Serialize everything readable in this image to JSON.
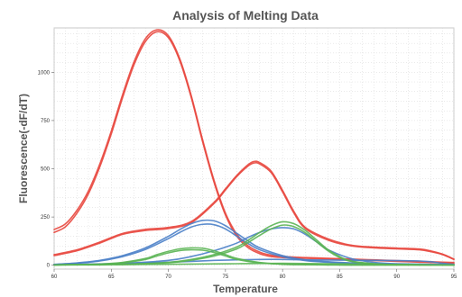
{
  "chart_data": {
    "type": "line",
    "title": "Analysis of Melting Data",
    "xlabel": "Temperature",
    "ylabel": "Fluorescence(-dF/dT)",
    "xlim": [
      60,
      95
    ],
    "ylim": [
      -20,
      1230
    ],
    "x_ticks": [
      "60",
      "65",
      "70",
      "75",
      "80",
      "85",
      "90",
      "95"
    ],
    "x_tick_values": [
      60,
      65,
      70,
      75,
      80,
      85,
      90,
      95
    ],
    "y_ticks": [
      "0",
      "250",
      "500",
      "750",
      "1000"
    ],
    "y_tick_values": [
      0,
      250,
      500,
      750,
      1000
    ],
    "grid": true,
    "series": [
      {
        "color": "#e8463d",
        "x": [
          60,
          61,
          62,
          63,
          64,
          65,
          66,
          67,
          68,
          69,
          70,
          71,
          72,
          73,
          74,
          75,
          76,
          77,
          78,
          79,
          80,
          81,
          82,
          83,
          84,
          85,
          86,
          87,
          88,
          89,
          90,
          91,
          92,
          93,
          94,
          95
        ],
        "y": [
          170,
          200,
          270,
          370,
          510,
          680,
          870,
          1040,
          1160,
          1210,
          1180,
          1060,
          870,
          640,
          430,
          260,
          150,
          90,
          60,
          45,
          40,
          38,
          36,
          34,
          32,
          30,
          28,
          26,
          24,
          22,
          20,
          18,
          16,
          14,
          12,
          10
        ]
      },
      {
        "color": "#e8463d",
        "x": [
          60,
          61,
          62,
          63,
          64,
          65,
          66,
          67,
          68,
          69,
          70,
          71,
          72,
          73,
          74,
          75,
          76,
          77,
          78,
          79,
          80,
          81,
          82,
          83,
          84,
          85,
          86,
          87,
          88,
          89,
          90,
          91,
          92,
          93,
          94,
          95
        ],
        "y": [
          185,
          215,
          285,
          385,
          525,
          695,
          885,
          1055,
          1175,
          1220,
          1190,
          1070,
          880,
          650,
          440,
          270,
          160,
          100,
          68,
          52,
          46,
          42,
          40,
          38,
          36,
          34,
          32,
          30,
          28,
          26,
          24,
          22,
          20,
          18,
          16,
          14
        ]
      },
      {
        "color": "#e8463d",
        "x": [
          60,
          62,
          64,
          66,
          68,
          70,
          72,
          74,
          75,
          76,
          77,
          77.5,
          78,
          79,
          80,
          81,
          82,
          84,
          86,
          88,
          90,
          92,
          93,
          94,
          95
        ],
        "y": [
          50,
          75,
          115,
          160,
          180,
          190,
          220,
          320,
          390,
          460,
          515,
          530,
          525,
          480,
          380,
          270,
          190,
          130,
          100,
          90,
          85,
          80,
          70,
          55,
          30
        ]
      },
      {
        "color": "#e8463d",
        "x": [
          60,
          62,
          64,
          66,
          68,
          70,
          72,
          74,
          75,
          76,
          77,
          77.5,
          78,
          79,
          80,
          81,
          82,
          84,
          86,
          88,
          90,
          92,
          93,
          94,
          95
        ],
        "y": [
          55,
          80,
          120,
          165,
          186,
          196,
          226,
          326,
          396,
          466,
          522,
          538,
          532,
          488,
          388,
          278,
          196,
          136,
          104,
          94,
          89,
          84,
          74,
          58,
          32
        ]
      },
      {
        "color": "#4a7fc8",
        "x": [
          60,
          62,
          64,
          66,
          68,
          70,
          71,
          72,
          73,
          74,
          75,
          76,
          77,
          78,
          80,
          82,
          84,
          86,
          88,
          90,
          95
        ],
        "y": [
          5,
          12,
          25,
          50,
          90,
          150,
          185,
          215,
          232,
          230,
          205,
          165,
          125,
          90,
          50,
          28,
          18,
          12,
          8,
          5,
          3
        ]
      },
      {
        "color": "#4a7fc8",
        "x": [
          60,
          62,
          64,
          66,
          68,
          70,
          71,
          72,
          73,
          74,
          75,
          76,
          77,
          78,
          80,
          82,
          84,
          86,
          88,
          90,
          95
        ],
        "y": [
          4,
          10,
          22,
          45,
          82,
          138,
          170,
          198,
          212,
          210,
          188,
          150,
          112,
          80,
          44,
          24,
          15,
          10,
          7,
          4,
          2
        ]
      },
      {
        "color": "#4a7fc8",
        "x": [
          60,
          66,
          70,
          72,
          74,
          76,
          77,
          78,
          79,
          80,
          81,
          82,
          83,
          84,
          86,
          88,
          90,
          95
        ],
        "y": [
          3,
          10,
          25,
          45,
          75,
          115,
          145,
          170,
          188,
          195,
          188,
          160,
          120,
          80,
          35,
          15,
          8,
          3
        ]
      },
      {
        "color": "#4a7fc8",
        "x": [
          60,
          62,
          64,
          66,
          68,
          70,
          72,
          74,
          76,
          78,
          80,
          82,
          84,
          86,
          88,
          90,
          92,
          93,
          94,
          95
        ],
        "y": [
          2,
          4,
          6,
          8,
          12,
          16,
          20,
          25,
          28,
          30,
          30,
          28,
          27,
          26,
          25,
          24,
          22,
          18,
          10,
          5
        ]
      },
      {
        "color": "#5ab453",
        "x": [
          60,
          64,
          66,
          68,
          69,
          70,
          71,
          72,
          73,
          74,
          75,
          76,
          78,
          80,
          82,
          84,
          86,
          88,
          90,
          95
        ],
        "y": [
          2,
          6,
          15,
          35,
          55,
          72,
          85,
          90,
          88,
          75,
          55,
          35,
          14,
          6,
          3,
          2,
          1,
          1,
          1,
          1
        ]
      },
      {
        "color": "#5ab453",
        "x": [
          60,
          64,
          66,
          68,
          69,
          70,
          71,
          72,
          73,
          74,
          75,
          76,
          78,
          80,
          82,
          84,
          86,
          88,
          90,
          95
        ],
        "y": [
          2,
          5,
          13,
          30,
          48,
          64,
          76,
          80,
          78,
          66,
          48,
          30,
          12,
          5,
          3,
          2,
          1,
          1,
          1,
          1
        ]
      },
      {
        "color": "#5ab453",
        "x": [
          60,
          66,
          70,
          72,
          74,
          76,
          77,
          78,
          79,
          80,
          81,
          82,
          83,
          84,
          85,
          86,
          88,
          90,
          95
        ],
        "y": [
          2,
          6,
          15,
          30,
          55,
          95,
          130,
          170,
          205,
          225,
          215,
          180,
          130,
          80,
          45,
          22,
          8,
          3,
          1
        ]
      },
      {
        "color": "#5ab453",
        "x": [
          60,
          66,
          70,
          72,
          74,
          76,
          77,
          78,
          79,
          80,
          81,
          82,
          83,
          84,
          85,
          86,
          88,
          90,
          95
        ],
        "y": [
          2,
          5,
          13,
          26,
          48,
          85,
          118,
          155,
          188,
          208,
          200,
          168,
          120,
          74,
          40,
          20,
          7,
          3,
          1
        ]
      },
      {
        "color": "#5ab453",
        "x": [
          60,
          64,
          68,
          72,
          76,
          80,
          84,
          88,
          92,
          95
        ],
        "y": [
          1,
          2,
          4,
          6,
          8,
          10,
          8,
          5,
          3,
          2
        ]
      }
    ]
  }
}
